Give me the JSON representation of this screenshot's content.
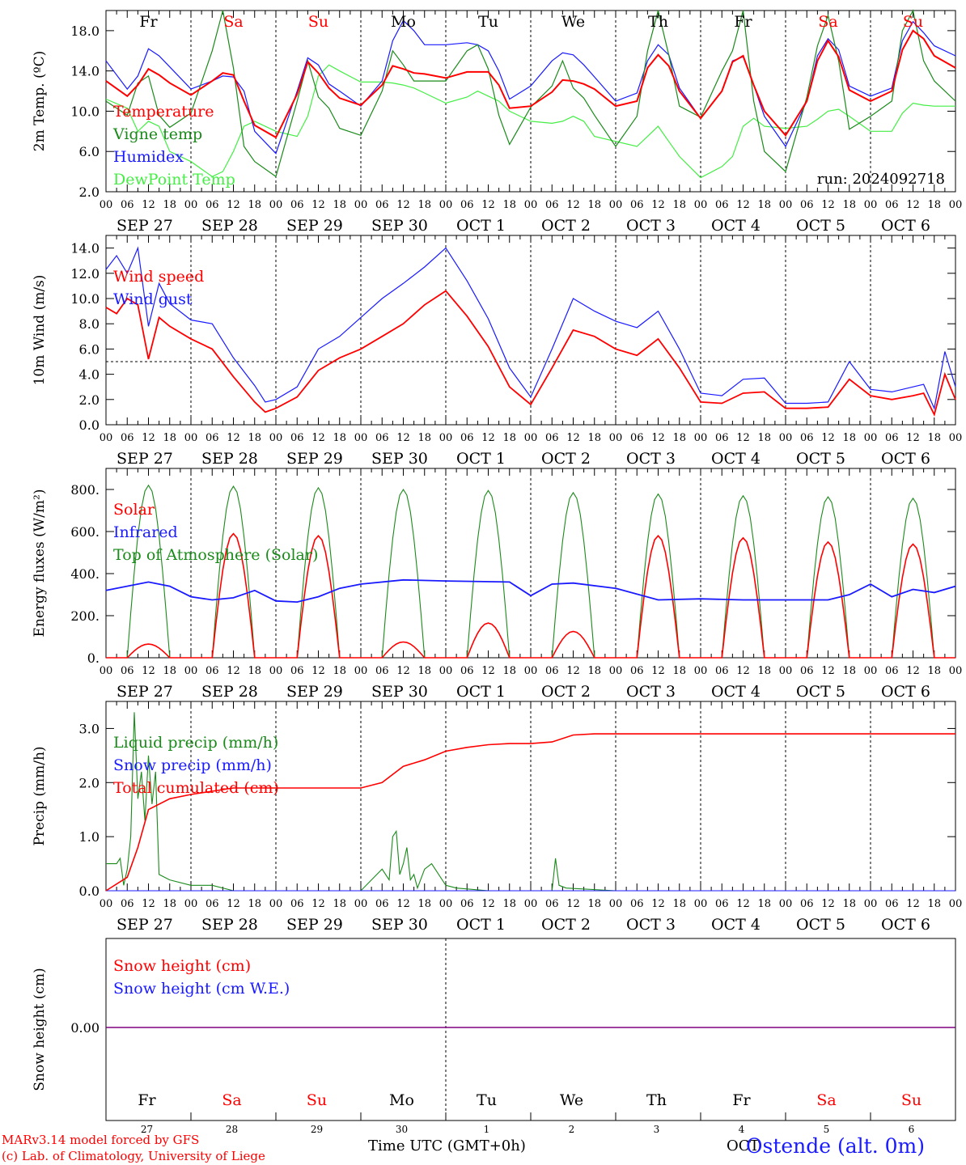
{
  "colors": {
    "red": "#ff0000",
    "darkgreen": "#1a8a1a",
    "blue": "#1a1aff",
    "lightgreen": "#44ee44",
    "purple": "#800080",
    "black": "#000000"
  },
  "days": [
    "Fr",
    "Sa",
    "Su",
    "Mo",
    "Tu",
    "We",
    "Th",
    "Fr",
    "Sa",
    "Su"
  ],
  "weekend_flags": [
    false,
    true,
    true,
    false,
    false,
    false,
    false,
    false,
    true,
    true
  ],
  "date_labels": [
    "SEP 27",
    "SEP 28",
    "SEP 29",
    "SEP 30",
    "OCT  1",
    "OCT  2",
    "OCT  3",
    "OCT  4",
    "OCT  5",
    "OCT  6"
  ],
  "hour_labels": [
    "00",
    "06",
    "12",
    "18"
  ],
  "last_hour_label": "00",
  "bottom_day_numbers": [
    "27",
    "28",
    "29",
    "30",
    "1",
    "2",
    "3",
    "4",
    "5",
    "6"
  ],
  "footer": {
    "model": "MARv3.14 model forced by GFS",
    "credit": "(c) Lab. of Climatology, University of Liege",
    "axis_title": "Time UTC (GMT+0h)",
    "month_label": "OCT",
    "station": "Ostende (alt. 0m)"
  },
  "chart_data": [
    {
      "type": "line",
      "id": "temp",
      "ylabel": "2m Temp. (ºC)",
      "ylim": [
        2.0,
        20.0
      ],
      "yticks": [
        2.0,
        6.0,
        10.0,
        14.0,
        18.0
      ],
      "ytick_labels": [
        "2.0",
        "6.0",
        "10.0",
        "14.0",
        "18.0"
      ],
      "annotation": "run: 2024092718",
      "x_hours": [
        0,
        6,
        9,
        12,
        15,
        18,
        24,
        30,
        33,
        36,
        39,
        42,
        48,
        54,
        57,
        60,
        63,
        66,
        72,
        78,
        81,
        84,
        87,
        90,
        96,
        102,
        105,
        108,
        111,
        114,
        120,
        126,
        129,
        132,
        135,
        138,
        144,
        150,
        153,
        156,
        159,
        162,
        168,
        174,
        177,
        180,
        183,
        186,
        192,
        198,
        201,
        204,
        207,
        210,
        216,
        222,
        225,
        228,
        231,
        234,
        240
      ],
      "series": [
        {
          "name": "Temperature",
          "color": "red",
          "values": [
            13.0,
            11.5,
            12.6,
            14.2,
            13.6,
            12.8,
            11.6,
            13.0,
            13.8,
            13.6,
            11.0,
            8.6,
            7.4,
            11.7,
            14.9,
            13.8,
            12.3,
            11.3,
            10.6,
            12.6,
            14.5,
            14.2,
            13.8,
            13.7,
            13.3,
            13.9,
            13.9,
            13.9,
            12.6,
            10.3,
            10.5,
            11.9,
            13.1,
            13.0,
            12.7,
            12.2,
            10.5,
            11.0,
            14.3,
            15.6,
            14.5,
            12.0,
            9.3,
            12.0,
            14.9,
            15.5,
            12.6,
            10.0,
            7.6,
            11.0,
            15.0,
            17.0,
            15.4,
            12.1,
            11.0,
            12.0,
            16.1,
            18.0,
            17.2,
            15.5,
            14.3
          ],
          "legend_order": 0
        },
        {
          "name": "Vigne temp",
          "color": "darkgreen",
          "values": [
            11.0,
            9.6,
            12.8,
            13.5,
            9.6,
            8.4,
            9.8,
            16.0,
            20.0,
            14.3,
            6.5,
            5.0,
            3.5,
            11.0,
            15.0,
            11.4,
            10.3,
            8.3,
            7.6,
            12.0,
            16.0,
            14.6,
            13.0,
            13.0,
            13.0,
            16.0,
            16.6,
            14.2,
            9.6,
            6.7,
            10.4,
            12.5,
            15.0,
            12.3,
            11.3,
            9.6,
            6.5,
            9.5,
            16.0,
            20.0,
            15.6,
            10.5,
            9.4,
            14.0,
            16.0,
            20.0,
            11.0,
            6.0,
            4.0,
            11.4,
            16.5,
            19.5,
            15.0,
            8.2,
            9.5,
            11.0,
            18.0,
            20.0,
            15.0,
            13.0,
            11.0
          ],
          "legend_order": 1
        },
        {
          "name": "Humidex",
          "color": "blue",
          "values": [
            15.0,
            12.2,
            13.5,
            16.2,
            15.5,
            14.4,
            12.2,
            13.0,
            13.5,
            13.4,
            12.0,
            8.0,
            5.8,
            12.0,
            15.3,
            14.6,
            12.7,
            12.0,
            10.5,
            13.0,
            17.0,
            19.0,
            18.0,
            16.6,
            16.6,
            16.8,
            16.6,
            16.0,
            14.0,
            11.2,
            12.5,
            15.0,
            15.8,
            15.6,
            14.6,
            13.4,
            11.0,
            11.8,
            15.0,
            16.6,
            15.6,
            12.3,
            9.3,
            12.0,
            15.0,
            15.4,
            12.6,
            9.5,
            6.5,
            11.0,
            15.5,
            17.2,
            16.1,
            12.5,
            11.5,
            12.3,
            17.0,
            18.9,
            17.8,
            16.5,
            15.5
          ],
          "legend_order": 2
        },
        {
          "name": "DewPoint Temp",
          "color": "lightgreen",
          "values": [
            11.2,
            10.3,
            8.0,
            9.0,
            8.5,
            6.0,
            5.0,
            3.5,
            4.0,
            6.0,
            8.5,
            9.0,
            8.0,
            7.5,
            9.5,
            13.5,
            14.6,
            14.0,
            12.9,
            12.9,
            12.8,
            12.6,
            12.3,
            11.8,
            10.8,
            11.4,
            12.0,
            11.5,
            11.0,
            10.0,
            9.0,
            8.8,
            9.0,
            9.5,
            9.0,
            7.5,
            7.0,
            6.5,
            7.5,
            8.5,
            7.0,
            5.5,
            3.4,
            4.5,
            5.5,
            8.5,
            9.3,
            8.5,
            8.3,
            8.5,
            9.2,
            10.0,
            10.2,
            9.5,
            8.0,
            8.0,
            9.8,
            10.8,
            10.6,
            10.5,
            10.5
          ],
          "legend_order": 3
        }
      ]
    },
    {
      "type": "line",
      "id": "wind",
      "ylabel": "10m Wind (m/s)",
      "ylim": [
        0.0,
        15.0
      ],
      "yticks": [
        0.0,
        2.0,
        4.0,
        6.0,
        8.0,
        10.0,
        12.0,
        14.0
      ],
      "ytick_labels": [
        "0.0",
        "2.0",
        "4.0",
        "6.0",
        "8.0",
        "10.0",
        "12.0",
        "14.0"
      ],
      "reference_line": 5.0,
      "x_hours": [
        0,
        3,
        6,
        9,
        12,
        15,
        18,
        24,
        30,
        36,
        42,
        45,
        48,
        54,
        60,
        66,
        72,
        78,
        84,
        90,
        96,
        102,
        108,
        114,
        120,
        126,
        132,
        138,
        144,
        150,
        156,
        162,
        168,
        174,
        180,
        186,
        192,
        198,
        204,
        210,
        216,
        222,
        228,
        231,
        234,
        237,
        240
      ],
      "series": [
        {
          "name": "Wind speed",
          "color": "red",
          "values": [
            9.3,
            8.8,
            10.0,
            9.5,
            5.2,
            8.5,
            7.8,
            6.8,
            6.0,
            3.8,
            1.8,
            1.0,
            1.3,
            2.2,
            4.3,
            5.3,
            6.0,
            7.0,
            8.0,
            9.5,
            10.6,
            8.6,
            6.2,
            3.0,
            1.6,
            4.5,
            7.5,
            7.0,
            6.0,
            5.5,
            6.8,
            4.5,
            1.8,
            1.7,
            2.5,
            2.6,
            1.3,
            1.3,
            1.4,
            3.6,
            2.3,
            2.0,
            2.3,
            2.5,
            0.8,
            4.0,
            2.0
          ]
        },
        {
          "name": "Wind gust",
          "color": "blue",
          "values": [
            12.3,
            13.4,
            12.0,
            14.0,
            7.8,
            11.2,
            9.6,
            8.3,
            8.0,
            5.3,
            3.1,
            1.8,
            2.0,
            3.0,
            6.0,
            7.0,
            8.5,
            10.0,
            11.2,
            12.5,
            14.0,
            11.4,
            8.4,
            4.5,
            2.2,
            6.0,
            10.0,
            9.0,
            8.2,
            7.7,
            9.0,
            6.0,
            2.5,
            2.3,
            3.6,
            3.7,
            1.7,
            1.7,
            1.8,
            5.0,
            2.8,
            2.6,
            3.0,
            3.2,
            1.3,
            5.8,
            3.0
          ]
        }
      ]
    },
    {
      "type": "line",
      "id": "flux",
      "ylabel": "Energy fluxes (W/m²)",
      "ylim": [
        0,
        900
      ],
      "yticks": [
        0,
        200,
        400,
        600,
        800
      ],
      "ytick_labels": [
        "0.",
        "200.",
        "400.",
        "600.",
        "800."
      ],
      "daylight_start_hour": 6,
      "daylight_end_hour": 18,
      "series": [
        {
          "name": "Solar",
          "color": "red",
          "daily_peaks": [
            65,
            590,
            580,
            75,
            165,
            125,
            580,
            570,
            550,
            540
          ]
        },
        {
          "name": "Infrared",
          "color": "blue",
          "x_hours": [
            0,
            12,
            18,
            24,
            30,
            36,
            42,
            48,
            54,
            60,
            66,
            72,
            84,
            96,
            114,
            120,
            126,
            132,
            144,
            156,
            168,
            180,
            192,
            204,
            210,
            216,
            222,
            228,
            234,
            240
          ],
          "values": [
            320,
            360,
            340,
            290,
            275,
            285,
            320,
            270,
            265,
            290,
            330,
            350,
            370,
            365,
            360,
            295,
            350,
            355,
            330,
            275,
            280,
            275,
            275,
            275,
            300,
            350,
            290,
            325,
            310,
            340
          ]
        },
        {
          "name": "Top of Atmosphere (Solar)",
          "color": "darkgreen",
          "daily_peaks": [
            820,
            815,
            808,
            800,
            795,
            785,
            778,
            770,
            765,
            758
          ]
        }
      ]
    },
    {
      "type": "line",
      "id": "precip",
      "ylabel": "Precip (mm/h)",
      "ylim": [
        0.0,
        3.5
      ],
      "yticks": [
        0.0,
        1.0,
        2.0,
        3.0
      ],
      "ytick_labels": [
        "0.0",
        "1.0",
        "2.0",
        "3.0"
      ],
      "series": [
        {
          "name": "Liquid precip (mm/h)",
          "color": "darkgreen",
          "x_hours": [
            0,
            3,
            4,
            5,
            6,
            7,
            8,
            9,
            10,
            11,
            12,
            13,
            14,
            15,
            18,
            24,
            30,
            36,
            42,
            48,
            72,
            78,
            80,
            81,
            82,
            83,
            84,
            85,
            86,
            87,
            88,
            90,
            92,
            96,
            99,
            108,
            120,
            126,
            127,
            128,
            130,
            144,
            240
          ],
          "values": [
            0.5,
            0.5,
            0.6,
            0.1,
            0.4,
            1.0,
            3.3,
            1.7,
            2.2,
            1.3,
            2.5,
            1.6,
            2.2,
            0.3,
            0.2,
            0.1,
            0.1,
            0.0,
            0.0,
            0.0,
            0.0,
            0.4,
            0.2,
            1.0,
            1.1,
            0.3,
            0.5,
            0.8,
            0.2,
            0.3,
            0.05,
            0.4,
            0.5,
            0.1,
            0.05,
            0.0,
            0.0,
            0.0,
            0.6,
            0.1,
            0.05,
            0.0,
            0.0
          ]
        },
        {
          "name": "Snow precip (mm/h)",
          "color": "blue",
          "x_hours": [
            0,
            240
          ],
          "values": [
            0.0,
            0.0
          ]
        },
        {
          "name": "Total cumulated (cm)",
          "color": "red",
          "x_hours": [
            0,
            6,
            9,
            12,
            18,
            24,
            30,
            36,
            42,
            48,
            60,
            72,
            78,
            84,
            90,
            96,
            102,
            108,
            114,
            120,
            126,
            132,
            138,
            144,
            240
          ],
          "values": [
            0.0,
            0.25,
            0.8,
            1.5,
            1.7,
            1.78,
            1.84,
            1.9,
            1.9,
            1.9,
            1.9,
            1.9,
            2.0,
            2.3,
            2.42,
            2.58,
            2.65,
            2.7,
            2.72,
            2.72,
            2.75,
            2.88,
            2.9,
            2.9,
            2.9
          ]
        }
      ]
    },
    {
      "type": "line",
      "id": "snow",
      "ylabel": "Snow height (cm)",
      "ytick_labels": [
        "0.00"
      ],
      "series": [
        {
          "name": "Snow height (cm)",
          "color": "red",
          "values": [
            0.0,
            0.0
          ]
        },
        {
          "name": "Snow height (cm W.E.)",
          "color": "blue",
          "values": [
            0.0,
            0.0
          ]
        }
      ]
    }
  ]
}
